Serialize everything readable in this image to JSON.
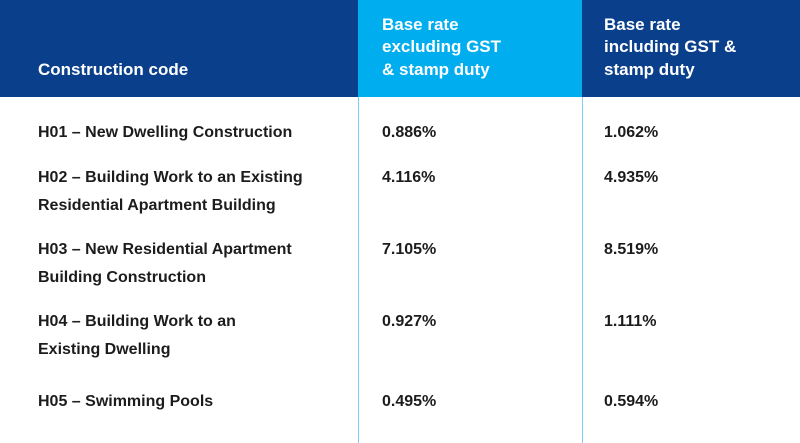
{
  "table": {
    "header": [
      "Construction code",
      "Base rate excluding GST & stamp duty",
      "Base rate including GST & stamp duty"
    ],
    "rows": [
      [
        [
          "H01 – New Dwelling Construction"
        ],
        "0.886%",
        "1.062%"
      ],
      [
        [
          "H02 – Building Work to an Existing",
          "Residential Apartment Building"
        ],
        "4.116%",
        "4.935%"
      ],
      [
        [
          "H03 – New Residential Apartment",
          "Building Construction"
        ],
        "7.105%",
        "8.519%"
      ],
      [
        [
          "H04 – Building Work to an",
          "Existing Dwelling"
        ],
        "0.927%",
        "1.111%"
      ],
      [
        [
          "H05 – Swimming Pools"
        ],
        "0.495%",
        "0.594%"
      ]
    ]
  }
}
